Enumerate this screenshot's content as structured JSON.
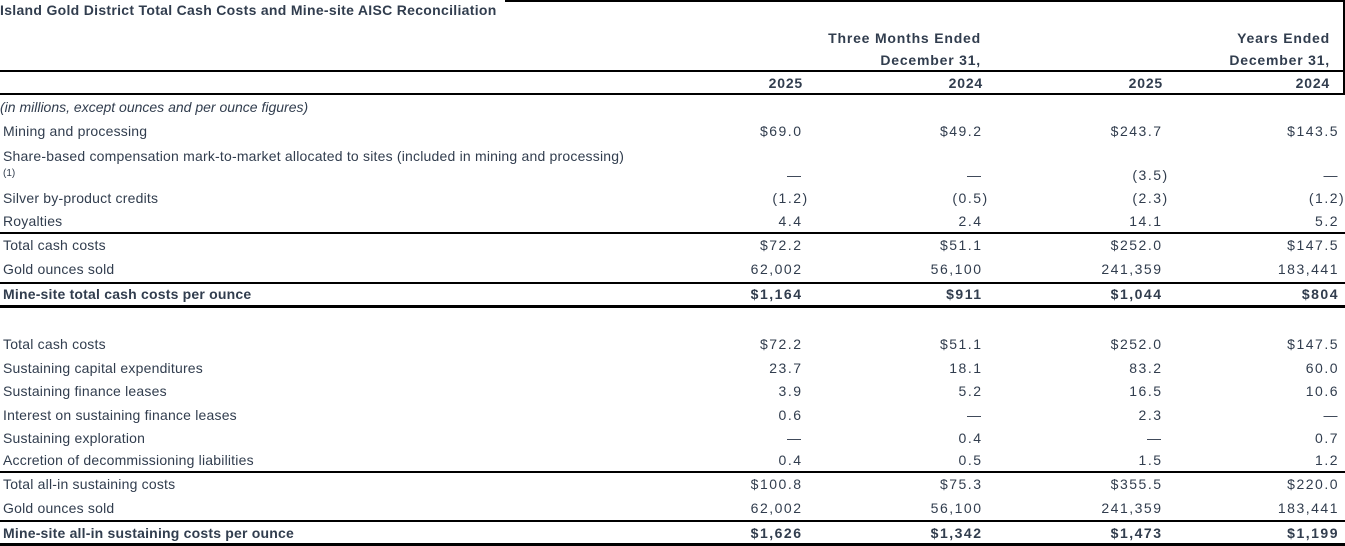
{
  "title": "Island Gold District Total Cash Costs and Mine-site AISC Reconciliation",
  "columns": {
    "group1": {
      "title": "Three Months Ended",
      "subtitle": "December 31,",
      "years": [
        "2025",
        "2024"
      ]
    },
    "group2": {
      "title": "Years Ended",
      "subtitle": "December 31,",
      "years": [
        "2025",
        "2024"
      ]
    }
  },
  "note": "(in millions, except ounces and per ounce figures)",
  "sections": [
    {
      "rows": [
        {
          "label": "Mining and processing",
          "kind": "item",
          "values": [
            "$69.0",
            "$49.2",
            "$243.7",
            "$143.5"
          ]
        },
        {
          "label": "Share-based compensation mark-to-market allocated to sites (included in mining and processing)",
          "footnote": "(1)",
          "kind": "item",
          "values": [
            "—",
            "—",
            "(3.5)",
            "—"
          ]
        },
        {
          "label": "Silver by-product credits",
          "kind": "item",
          "values": [
            "(1.2)",
            "(0.5)",
            "(2.3)",
            "(1.2)"
          ]
        },
        {
          "label": "Royalties",
          "kind": "item",
          "values": [
            "4.4",
            "2.4",
            "14.1",
            "5.2"
          ]
        },
        {
          "label": "Total cash costs",
          "kind": "subtotal",
          "values": [
            "$72.2",
            "$51.1",
            "$252.0",
            "$147.5"
          ]
        },
        {
          "label": "Gold ounces sold",
          "kind": "item",
          "values": [
            "62,002",
            "56,100",
            "241,359",
            "183,441"
          ]
        },
        {
          "label": "Mine-site total cash costs per ounce",
          "kind": "per_ounce",
          "values": [
            "$1,164",
            "$911",
            "$1,044",
            "$804"
          ]
        }
      ]
    },
    {
      "rows": [
        {
          "label": "Total cash costs",
          "kind": "item",
          "values": [
            "$72.2",
            "$51.1",
            "$252.0",
            "$147.5"
          ]
        },
        {
          "label": "Sustaining capital expenditures",
          "kind": "item",
          "values": [
            "23.7",
            "18.1",
            "83.2",
            "60.0"
          ]
        },
        {
          "label": "Sustaining finance leases",
          "kind": "item",
          "values": [
            "3.9",
            "5.2",
            "16.5",
            "10.6"
          ]
        },
        {
          "label": "Interest on sustaining finance leases",
          "kind": "item",
          "values": [
            "0.6",
            "—",
            "2.3",
            "—"
          ]
        },
        {
          "label": "Sustaining exploration",
          "kind": "item",
          "values": [
            "—",
            "0.4",
            "—",
            "0.7"
          ]
        },
        {
          "label": "Accretion of decommissioning liabilities",
          "kind": "item",
          "values": [
            "0.4",
            "0.5",
            "1.5",
            "1.2"
          ]
        },
        {
          "label": "Total all-in sustaining costs",
          "kind": "subtotal",
          "values": [
            "$100.8",
            "$75.3",
            "$355.5",
            "$220.0"
          ]
        },
        {
          "label": "Gold ounces sold",
          "kind": "item",
          "values": [
            "62,002",
            "56,100",
            "241,359",
            "183,441"
          ]
        },
        {
          "label": "Mine-site all-in sustaining costs per ounce",
          "kind": "per_ounce",
          "values": [
            "$1,626",
            "$1,342",
            "$1,473",
            "$1,199"
          ]
        }
      ]
    }
  ]
}
